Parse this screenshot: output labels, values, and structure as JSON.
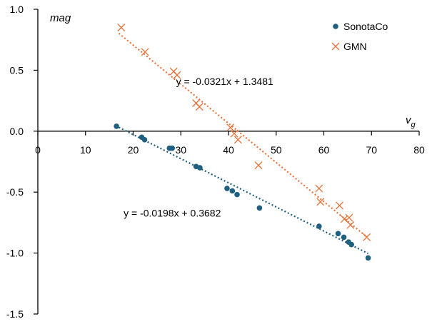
{
  "chart_data": {
    "type": "scatter",
    "x": {
      "label": "v",
      "label_subscript": "g",
      "range": [
        0,
        80
      ],
      "ticks": [
        "0",
        "10",
        "20",
        "30",
        "40",
        "50",
        "60",
        "70",
        "80"
      ]
    },
    "y": {
      "label": "mag",
      "range": [
        -1.5,
        1.0
      ],
      "ticks": [
        "1.0",
        "0.5",
        "0.0",
        "-0.5",
        "-1.0",
        "-1.5"
      ]
    },
    "grid": false,
    "legend_position": "top-right",
    "series": [
      {
        "name": "SonotaCo",
        "marker": "circle",
        "color": "#1f5f7f",
        "points": [
          [
            16.5,
            0.04
          ],
          [
            21.8,
            -0.05
          ],
          [
            22.4,
            -0.07
          ],
          [
            27.6,
            -0.14
          ],
          [
            28.2,
            -0.14
          ],
          [
            33.2,
            -0.29
          ],
          [
            34.0,
            -0.3
          ],
          [
            39.7,
            -0.47
          ],
          [
            40.8,
            -0.49
          ],
          [
            41.8,
            -0.52
          ],
          [
            46.5,
            -0.63
          ],
          [
            59.0,
            -0.78
          ],
          [
            63.0,
            -0.84
          ],
          [
            64.2,
            -0.87
          ],
          [
            65.2,
            -0.91
          ],
          [
            65.8,
            -0.93
          ],
          [
            69.3,
            -1.04
          ]
        ],
        "trendline": {
          "slope": -0.0198,
          "intercept": 0.3682,
          "x_range": [
            17,
            69.3
          ],
          "label": "y = -0.0198x + 0.3682",
          "label_at": [
            18,
            -0.7
          ]
        }
      },
      {
        "name": "GMN",
        "marker": "x",
        "color": "#e8733a",
        "points": [
          [
            17.5,
            0.85
          ],
          [
            22.5,
            0.65
          ],
          [
            28.5,
            0.49
          ],
          [
            29.2,
            0.46
          ],
          [
            33.2,
            0.23
          ],
          [
            33.9,
            0.2
          ],
          [
            40.4,
            0.03
          ],
          [
            41.2,
            -0.02
          ],
          [
            42.0,
            -0.07
          ],
          [
            46.3,
            -0.28
          ],
          [
            59.0,
            -0.47
          ],
          [
            59.3,
            -0.58
          ],
          [
            63.3,
            -0.61
          ],
          [
            64.3,
            -0.72
          ],
          [
            65.3,
            -0.71
          ],
          [
            65.6,
            -0.77
          ],
          [
            69.0,
            -0.87
          ]
        ],
        "trendline": {
          "slope": -0.0321,
          "intercept": 1.3481,
          "x_range": [
            17,
            69
          ],
          "label": "y = -0.0321x + 1.3481",
          "label_at": [
            29,
            0.38
          ]
        }
      }
    ]
  }
}
